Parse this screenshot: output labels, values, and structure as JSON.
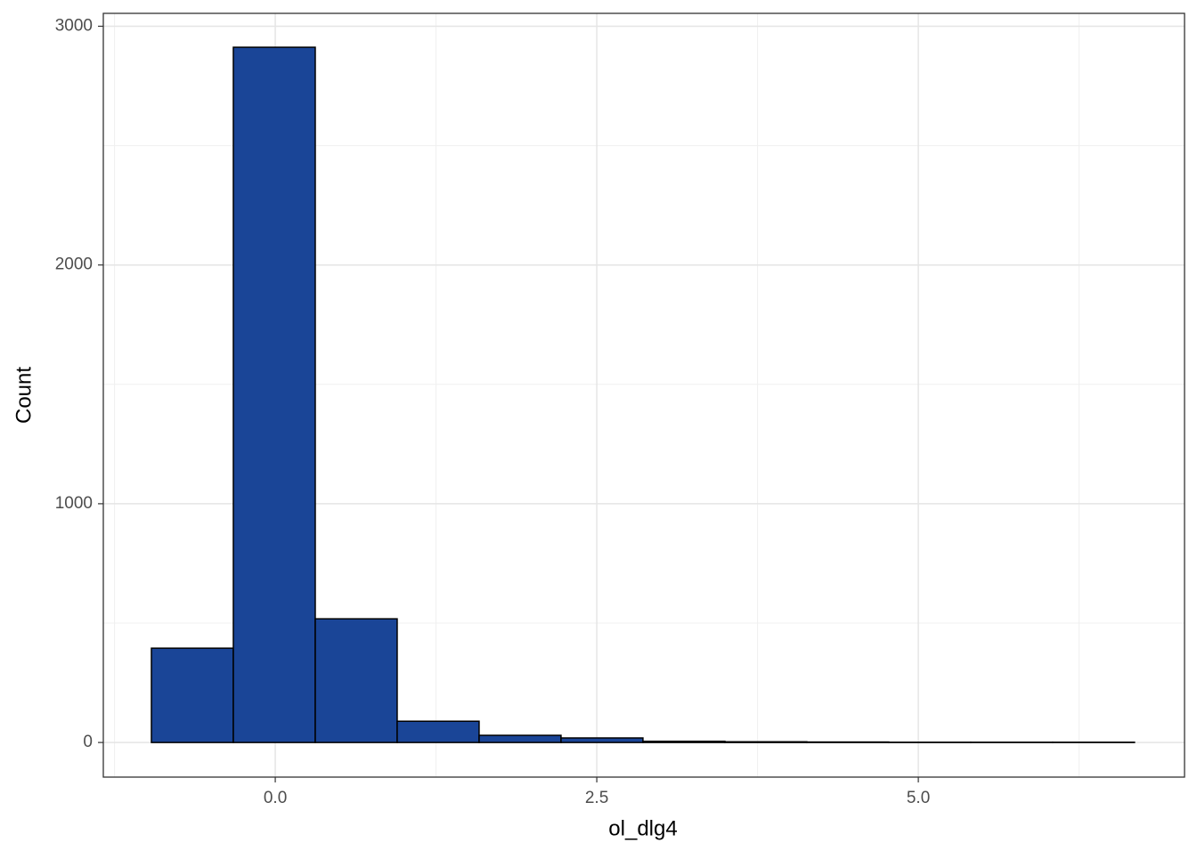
{
  "chart_data": {
    "type": "histogram",
    "x_label": "ol_dlg4",
    "y_label": "Count",
    "bins": [
      -0.963,
      -0.326,
      0.311,
      0.948,
      1.585,
      2.222,
      2.859,
      3.496,
      4.133,
      4.77,
      5.407,
      6.044,
      6.681
    ],
    "values": [
      395,
      2912,
      518,
      89,
      30,
      19,
      5,
      3,
      2,
      1,
      1,
      1
    ],
    "color": "#1a4597",
    "xlim": [
      -1.337,
      7.07
    ],
    "ylim": [
      -145,
      3054
    ],
    "xticks": [
      {
        "value": 0,
        "label": "0.0"
      },
      {
        "value": 2.5,
        "label": "2.5"
      },
      {
        "value": 5,
        "label": "5.0"
      }
    ],
    "yticks": [
      0,
      1000,
      2000,
      3000
    ],
    "grid": true
  }
}
